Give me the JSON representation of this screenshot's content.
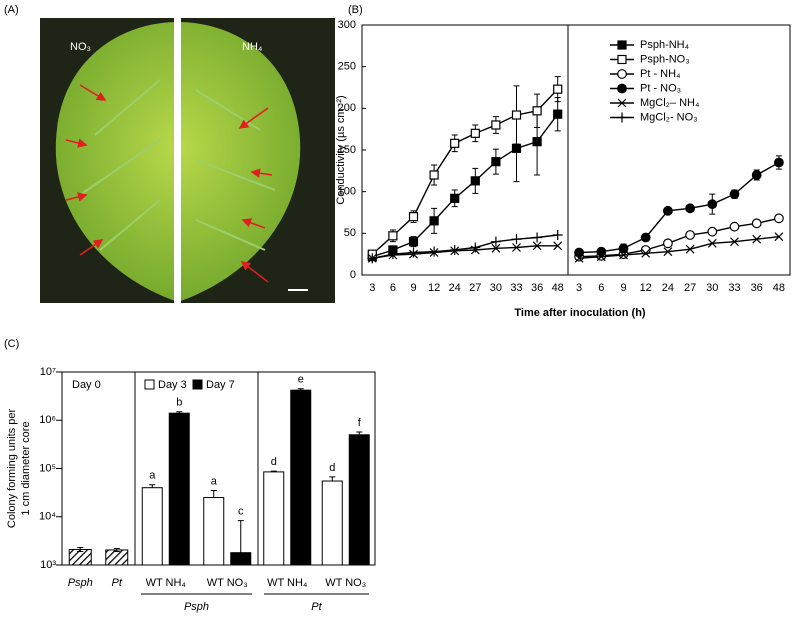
{
  "photo": {
    "panel_label": "(A)",
    "left_label": "NO₃",
    "right_label": "NH₄"
  },
  "chart_data": [
    {
      "type": "line",
      "panel_label": "(B)",
      "ylabel": "Conductivity (µs cm⁻²)",
      "xlabel": "Time after inoculation (h)",
      "categories": [
        "3",
        "6",
        "9",
        "12",
        "24",
        "27",
        "30",
        "33",
        "36",
        "48"
      ],
      "ylim": [
        0,
        300
      ],
      "yticks": [
        0,
        50,
        100,
        150,
        200,
        250,
        300
      ],
      "series": [
        {
          "name": "Psph-NH₄",
          "color": "#000000",
          "marker": "square-filled",
          "values": [
            22,
            30,
            40,
            65,
            92,
            113,
            136,
            152,
            160,
            193
          ],
          "errors": [
            3,
            5,
            6,
            15,
            10,
            15,
            15,
            40,
            40,
            20
          ]
        },
        {
          "name": "Psph-NO₃",
          "color": "#000000",
          "marker": "square-open",
          "values": [
            25,
            47,
            70,
            120,
            158,
            170,
            180,
            192,
            197,
            223
          ],
          "errors": [
            3,
            7,
            7,
            12,
            10,
            10,
            10,
            35,
            20,
            15
          ]
        },
        {
          "name": "MgCl₂– NH₄",
          "color": "#000000",
          "marker": "x",
          "values": [
            20,
            24,
            25,
            27,
            29,
            30,
            32,
            33,
            35,
            35
          ]
        },
        {
          "name": "MgCl₂- NO₃",
          "color": "#000000",
          "marker": "plus",
          "values": [
            20,
            25,
            27,
            28,
            30,
            33,
            40,
            43,
            45,
            48
          ]
        }
      ]
    },
    {
      "type": "line",
      "categories": [
        "3",
        "6",
        "9",
        "12",
        "24",
        "27",
        "30",
        "33",
        "36",
        "48"
      ],
      "ylim": [
        0,
        300
      ],
      "series": [
        {
          "name": "Pt - NH₄",
          "color": "#000000",
          "marker": "circle-open",
          "values": [
            22,
            23,
            25,
            30,
            38,
            48,
            52,
            58,
            62,
            68
          ],
          "errors": [
            2,
            2,
            2,
            2,
            3,
            3,
            3,
            3,
            3,
            3
          ]
        },
        {
          "name": "Pt - NO₃",
          "color": "#000000",
          "marker": "circle-filled",
          "values": [
            27,
            28,
            32,
            45,
            77,
            80,
            85,
            97,
            120,
            135
          ],
          "errors": [
            3,
            3,
            5,
            4,
            3,
            3,
            12,
            5,
            6,
            8
          ]
        },
        {
          "color": "#000000",
          "marker": "x",
          "values": [
            20,
            22,
            24,
            26,
            28,
            31,
            38,
            40,
            43,
            46
          ]
        }
      ]
    },
    {
      "type": "bar",
      "panel_label": "(C)",
      "log_scale": true,
      "ylabel": [
        "Colony forming units per",
        "1 cm diameter core"
      ],
      "ylim": [
        1000,
        10000000
      ],
      "yticks": [
        {
          "value": 1000,
          "label": "10³"
        },
        {
          "value": 10000,
          "label": "10⁴"
        },
        {
          "value": 100000,
          "label": "10⁵"
        },
        {
          "value": 1000000,
          "label": "10⁶"
        },
        {
          "value": 10000000,
          "label": "10⁷"
        }
      ],
      "panels": [
        {
          "title": "Day 0",
          "categories": [
            "Psph",
            "Pt"
          ],
          "series": [
            {
              "color": "#ffffff",
              "pattern": "hatch",
              "values": [
                2100,
                2050
              ],
              "errors": [
                200,
                150
              ]
            }
          ]
        },
        {
          "group": "Psph",
          "categories": [
            "WT NH₄",
            "WT NO₃"
          ],
          "series": [
            {
              "name": "Day 3",
              "color": "#ffffff",
              "values": [
                40000,
                25000
              ],
              "errors": [
                6000,
                10000
              ],
              "letters": [
                "a",
                "a"
              ]
            },
            {
              "name": "Day 7",
              "color": "#000000",
              "values": [
                1400000,
                1800
              ],
              "errors": [
                100000,
                6500
              ],
              "letters": [
                "b",
                "c"
              ]
            }
          ]
        },
        {
          "group": "Pt",
          "categories": [
            "WT NH₄",
            "WT NO₃"
          ],
          "series": [
            {
              "color": "#ffffff",
              "values": [
                85000,
                55000
              ],
              "errors": [
                3000,
                12000
              ],
              "letters": [
                "d",
                "d"
              ]
            },
            {
              "color": "#000000",
              "values": [
                4200000,
                500000
              ],
              "errors": [
                300000,
                70000
              ],
              "letters": [
                "e",
                "f"
              ]
            }
          ]
        }
      ]
    }
  ]
}
